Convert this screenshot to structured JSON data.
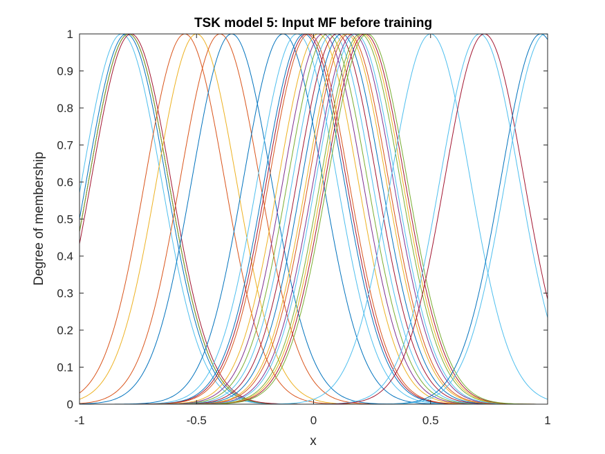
{
  "chart_data": {
    "type": "line",
    "title": "TSK model 5: Input MF before training",
    "xlabel": "x",
    "ylabel": "Degree of membership",
    "xlim": [
      -1,
      1
    ],
    "ylim": [
      0,
      1
    ],
    "x_ticks": [
      "-1",
      "-0.5",
      "0",
      "0.5",
      "1"
    ],
    "x_tick_values": [
      -1,
      -0.5,
      0,
      0.5,
      1
    ],
    "y_ticks": [
      "0",
      "0.1",
      "0.2",
      "0.3",
      "0.4",
      "0.5",
      "0.6",
      "0.7",
      "0.8",
      "0.9",
      "1"
    ],
    "y_tick_values": [
      0,
      0.1,
      0.2,
      0.3,
      0.4,
      0.5,
      0.6,
      0.7,
      0.8,
      0.9,
      1
    ],
    "grid": false,
    "curve_shape": "gaussian",
    "series": [
      {
        "center": -0.82,
        "sigma": 0.17,
        "color": "#4DBEEE"
      },
      {
        "center": -0.8,
        "sigma": 0.17,
        "color": "#0072BD"
      },
      {
        "center": -0.79,
        "sigma": 0.17,
        "color": "#D95319"
      },
      {
        "center": -0.79,
        "sigma": 0.17,
        "color": "#EDB120"
      },
      {
        "center": -0.79,
        "sigma": 0.17,
        "color": "#7E2F8E"
      },
      {
        "center": -0.79,
        "sigma": 0.17,
        "color": "#77AC30"
      },
      {
        "center": -0.78,
        "sigma": 0.17,
        "color": "#A2142F"
      },
      {
        "center": -0.55,
        "sigma": 0.17,
        "color": "#D95319"
      },
      {
        "center": -0.5,
        "sigma": 0.17,
        "color": "#EDB120"
      },
      {
        "center": -0.4,
        "sigma": 0.17,
        "color": "#D95319"
      },
      {
        "center": -0.35,
        "sigma": 0.17,
        "color": "#0072BD"
      },
      {
        "center": -0.13,
        "sigma": 0.17,
        "color": "#0072BD"
      },
      {
        "center": -0.07,
        "sigma": 0.17,
        "color": "#4DBEEE"
      },
      {
        "center": -0.04,
        "sigma": 0.17,
        "color": "#0072BD"
      },
      {
        "center": -0.03,
        "sigma": 0.17,
        "color": "#A2142F"
      },
      {
        "center": -0.02,
        "sigma": 0.17,
        "color": "#D95319"
      },
      {
        "center": 0.02,
        "sigma": 0.17,
        "color": "#EDB120"
      },
      {
        "center": 0.04,
        "sigma": 0.17,
        "color": "#7E2F8E"
      },
      {
        "center": 0.06,
        "sigma": 0.17,
        "color": "#77AC30"
      },
      {
        "center": 0.08,
        "sigma": 0.17,
        "color": "#4DBEEE"
      },
      {
        "center": 0.1,
        "sigma": 0.17,
        "color": "#A2142F"
      },
      {
        "center": 0.12,
        "sigma": 0.17,
        "color": "#0072BD"
      },
      {
        "center": 0.14,
        "sigma": 0.17,
        "color": "#EDB120"
      },
      {
        "center": 0.15,
        "sigma": 0.17,
        "color": "#D95319"
      },
      {
        "center": 0.17,
        "sigma": 0.17,
        "color": "#7E2F8E"
      },
      {
        "center": 0.18,
        "sigma": 0.17,
        "color": "#4DBEEE"
      },
      {
        "center": 0.2,
        "sigma": 0.17,
        "color": "#77AC30"
      },
      {
        "center": 0.21,
        "sigma": 0.17,
        "color": "#EDB120"
      },
      {
        "center": 0.22,
        "sigma": 0.17,
        "color": "#A2142F"
      },
      {
        "center": 0.23,
        "sigma": 0.17,
        "color": "#77AC30"
      },
      {
        "center": 0.5,
        "sigma": 0.17,
        "color": "#4DBEEE"
      },
      {
        "center": 0.71,
        "sigma": 0.17,
        "color": "#4DBEEE"
      },
      {
        "center": 0.73,
        "sigma": 0.17,
        "color": "#A2142F"
      },
      {
        "center": 0.97,
        "sigma": 0.17,
        "color": "#0072BD"
      },
      {
        "center": 0.99,
        "sigma": 0.17,
        "color": "#4DBEEE"
      }
    ]
  }
}
